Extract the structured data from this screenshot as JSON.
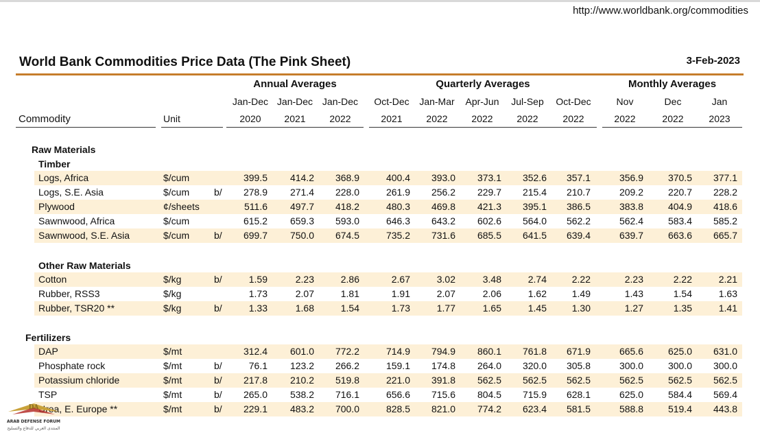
{
  "url": "http://www.worldbank.org/commodities",
  "title": "World Bank Commodities Price Data (The Pink Sheet)",
  "date": "3-Feb-2023",
  "groups": {
    "annual": "Annual Averages",
    "quarterly": "Quarterly Averages",
    "monthly": "Monthly Averages"
  },
  "header": {
    "commodity": "Commodity",
    "unit": "Unit",
    "columns": [
      {
        "top": "Jan-Dec",
        "bottom": "2020"
      },
      {
        "top": "Jan-Dec",
        "bottom": "2021"
      },
      {
        "top": "Jan-Dec",
        "bottom": "2022"
      },
      {
        "top": "Oct-Dec",
        "bottom": "2021"
      },
      {
        "top": "Jan-Mar",
        "bottom": "2022"
      },
      {
        "top": "Apr-Jun",
        "bottom": "2022"
      },
      {
        "top": "Jul-Sep",
        "bottom": "2022"
      },
      {
        "top": "Oct-Dec",
        "bottom": "2022"
      },
      {
        "top": "Nov",
        "bottom": "2022"
      },
      {
        "top": "Dec",
        "bottom": "2022"
      },
      {
        "top": "Jan",
        "bottom": "2023"
      }
    ]
  },
  "sections": {
    "raw_materials": "Raw Materials",
    "timber": "Timber",
    "other_raw": "Other Raw Materials",
    "fertilizers": "Fertilizers"
  },
  "timber_rows": [
    {
      "name": "Logs, Africa",
      "unit": "$/cum",
      "note": "",
      "values": [
        "399.5",
        "414.2",
        "368.9",
        "400.4",
        "393.0",
        "373.1",
        "352.6",
        "357.1",
        "356.9",
        "370.5",
        "377.1"
      ]
    },
    {
      "name": "Logs, S.E. Asia",
      "unit": "$/cum",
      "note": "b/",
      "values": [
        "278.9",
        "271.4",
        "228.0",
        "261.9",
        "256.2",
        "229.7",
        "215.4",
        "210.7",
        "209.2",
        "220.7",
        "228.2"
      ]
    },
    {
      "name": "Plywood",
      "unit": "¢/sheets",
      "note": "",
      "values": [
        "511.6",
        "497.7",
        "418.2",
        "480.3",
        "469.8",
        "421.3",
        "395.1",
        "386.5",
        "383.8",
        "404.9",
        "418.6"
      ]
    },
    {
      "name": "Sawnwood, Africa",
      "unit": "$/cum",
      "note": "",
      "values": [
        "615.2",
        "659.3",
        "593.0",
        "646.3",
        "643.2",
        "602.6",
        "564.0",
        "562.2",
        "562.4",
        "583.4",
        "585.2"
      ]
    },
    {
      "name": "Sawnwood, S.E. Asia",
      "unit": "$/cum",
      "note": "b/",
      "values": [
        "699.7",
        "750.0",
        "674.5",
        "735.2",
        "731.6",
        "685.5",
        "641.5",
        "639.4",
        "639.7",
        "663.6",
        "665.7"
      ]
    }
  ],
  "other_rows": [
    {
      "name": "Cotton",
      "unit": "$/kg",
      "note": "b/",
      "values": [
        "1.59",
        "2.23",
        "2.86",
        "2.67",
        "3.02",
        "3.48",
        "2.74",
        "2.22",
        "2.23",
        "2.22",
        "2.21"
      ]
    },
    {
      "name": "Rubber, RSS3",
      "unit": "$/kg",
      "note": "",
      "values": [
        "1.73",
        "2.07",
        "1.81",
        "1.91",
        "2.07",
        "2.06",
        "1.62",
        "1.49",
        "1.43",
        "1.54",
        "1.63"
      ]
    },
    {
      "name": "Rubber, TSR20 **",
      "unit": "$/kg",
      "note": "b/",
      "values": [
        "1.33",
        "1.68",
        "1.54",
        "1.73",
        "1.77",
        "1.65",
        "1.45",
        "1.30",
        "1.27",
        "1.35",
        "1.41"
      ]
    }
  ],
  "fert_rows": [
    {
      "name": "DAP",
      "unit": "$/mt",
      "note": "",
      "values": [
        "312.4",
        "601.0",
        "772.2",
        "714.9",
        "794.9",
        "860.1",
        "761.8",
        "671.9",
        "665.6",
        "625.0",
        "631.0"
      ]
    },
    {
      "name": "Phosphate rock",
      "unit": "$/mt",
      "note": "b/",
      "values": [
        "76.1",
        "123.2",
        "266.2",
        "159.1",
        "174.8",
        "264.0",
        "320.0",
        "305.8",
        "300.0",
        "300.0",
        "300.0"
      ]
    },
    {
      "name": "Potassium chloride",
      "unit": "$/mt",
      "note": "b/",
      "values": [
        "217.8",
        "210.2",
        "519.8",
        "221.0",
        "391.8",
        "562.5",
        "562.5",
        "562.5",
        "562.5",
        "562.5",
        "562.5"
      ]
    },
    {
      "name": "TSP",
      "unit": "$/mt",
      "note": "b/",
      "values": [
        "265.0",
        "538.2",
        "716.1",
        "656.6",
        "715.6",
        "804.5",
        "715.9",
        "628.1",
        "625.0",
        "584.4",
        "569.4"
      ]
    },
    {
      "name": "Urea, E. Europe **",
      "unit": "$/mt",
      "note": "b/",
      "values": [
        "229.1",
        "483.2",
        "700.0",
        "828.5",
        "821.0",
        "774.2",
        "623.4",
        "581.5",
        "588.8",
        "519.4",
        "443.8"
      ]
    }
  ],
  "watermark": {
    "badge": "DA",
    "line1": "ARAB DEFENSE FORUM",
    "line2": "المنتدى العربي للدفاع والتسليح",
    "gold": "#c9a23a",
    "red": "#b5302a"
  }
}
